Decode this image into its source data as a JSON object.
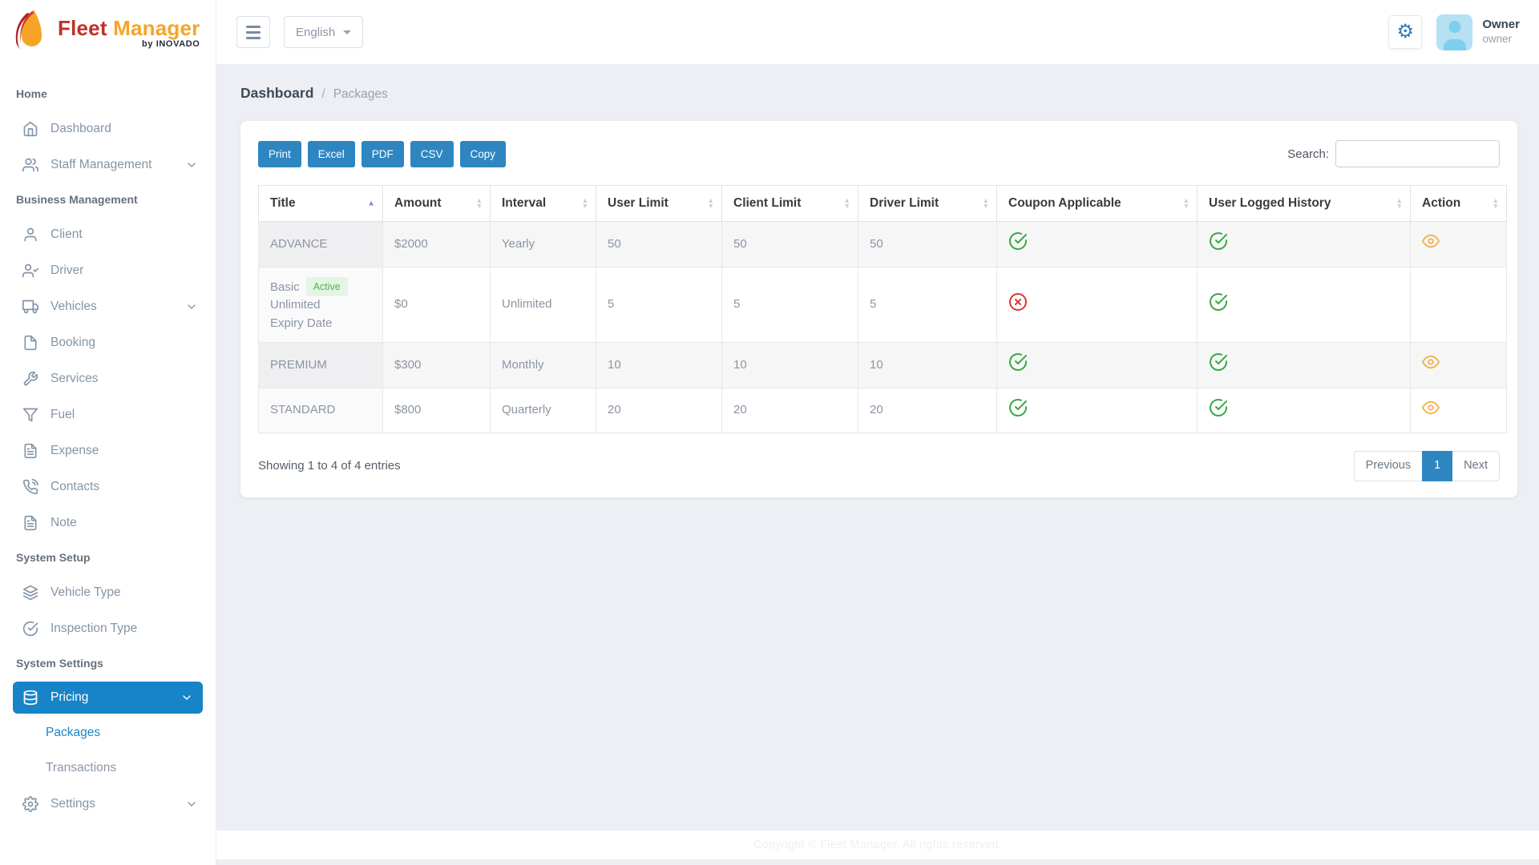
{
  "brand": {
    "title_primary": "Fleet",
    "title_secondary": "Manager",
    "byline": "by INOVADO"
  },
  "header": {
    "language": "English",
    "user": {
      "name": "Owner",
      "role": "owner"
    }
  },
  "sidebar": {
    "sections": [
      {
        "label": "Home",
        "items": [
          {
            "label": "Dashboard",
            "icon": "home"
          },
          {
            "label": "Staff Management",
            "icon": "users",
            "expandable": true
          }
        ]
      },
      {
        "label": "Business Management",
        "items": [
          {
            "label": "Client",
            "icon": "user"
          },
          {
            "label": "Driver",
            "icon": "user-check"
          },
          {
            "label": "Vehicles",
            "icon": "truck",
            "expandable": true
          },
          {
            "label": "Booking",
            "icon": "file"
          },
          {
            "label": "Services",
            "icon": "tool"
          },
          {
            "label": "Fuel",
            "icon": "filter"
          },
          {
            "label": "Expense",
            "icon": "file-text"
          },
          {
            "label": "Contacts",
            "icon": "phone-call"
          },
          {
            "label": "Note",
            "icon": "file-text"
          }
        ]
      },
      {
        "label": "System Setup",
        "items": [
          {
            "label": "Vehicle Type",
            "icon": "layers"
          },
          {
            "label": "Inspection Type",
            "icon": "check-circle"
          }
        ]
      },
      {
        "label": "System Settings",
        "items": [
          {
            "label": "Pricing",
            "icon": "database",
            "expandable": true,
            "active": true,
            "children": [
              {
                "label": "Packages",
                "active": true
              },
              {
                "label": "Transactions"
              }
            ]
          },
          {
            "label": "Settings",
            "icon": "settings",
            "expandable": true
          }
        ]
      }
    ]
  },
  "breadcrumb": {
    "root": "Dashboard",
    "current": "Packages"
  },
  "toolbar": {
    "export_buttons": [
      "Print",
      "Excel",
      "PDF",
      "CSV",
      "Copy"
    ],
    "search_label": "Search:",
    "search_value": ""
  },
  "table": {
    "columns": [
      {
        "label": "Title",
        "sort": "asc"
      },
      {
        "label": "Amount"
      },
      {
        "label": "Interval"
      },
      {
        "label": "User Limit"
      },
      {
        "label": "Client Limit"
      },
      {
        "label": "Driver Limit"
      },
      {
        "label": "Coupon Applicable"
      },
      {
        "label": "User Logged History"
      },
      {
        "label": "Action"
      }
    ],
    "status_icons": {
      "yes": "check-circle-icon",
      "no": "x-circle-icon",
      "view": "eye-icon"
    },
    "rows": [
      {
        "title": "ADVANCE",
        "badge": "",
        "title_note": "",
        "amount": "$2000",
        "interval": "Yearly",
        "user_limit": "50",
        "client_limit": "50",
        "driver_limit": "50",
        "coupon_applicable": "yes",
        "user_logged_history": "yes",
        "action": "view"
      },
      {
        "title": "Basic",
        "badge": "Active",
        "title_note": "Unlimited Expiry Date",
        "amount": "$0",
        "interval": "Unlimited",
        "user_limit": "5",
        "client_limit": "5",
        "driver_limit": "5",
        "coupon_applicable": "no",
        "user_logged_history": "yes",
        "action": ""
      },
      {
        "title": "PREMIUM",
        "badge": "",
        "title_note": "",
        "amount": "$300",
        "interval": "Monthly",
        "user_limit": "10",
        "client_limit": "10",
        "driver_limit": "10",
        "coupon_applicable": "yes",
        "user_logged_history": "yes",
        "action": "view"
      },
      {
        "title": "STANDARD",
        "badge": "",
        "title_note": "",
        "amount": "$800",
        "interval": "Quarterly",
        "user_limit": "20",
        "client_limit": "20",
        "driver_limit": "20",
        "coupon_applicable": "yes",
        "user_logged_history": "yes",
        "action": "view"
      }
    ],
    "summary": "Showing 1 to 4 of 4 entries",
    "pagination": {
      "previous_label": "Previous",
      "pages": [
        {
          "label": "1",
          "active": true
        }
      ],
      "next_label": "Next"
    }
  },
  "footer": {
    "copyright": "Copyright © Fleet Manager. All rights reserved."
  },
  "colors": {
    "accent_blue": "#2e86c1",
    "sidebar_active_blue": "#1784c7",
    "success_green": "#3aa845",
    "danger_red": "#db3434",
    "warning_orange": "#f3b04b",
    "brand_red": "#bf3026",
    "brand_orange": "#f6a428"
  }
}
